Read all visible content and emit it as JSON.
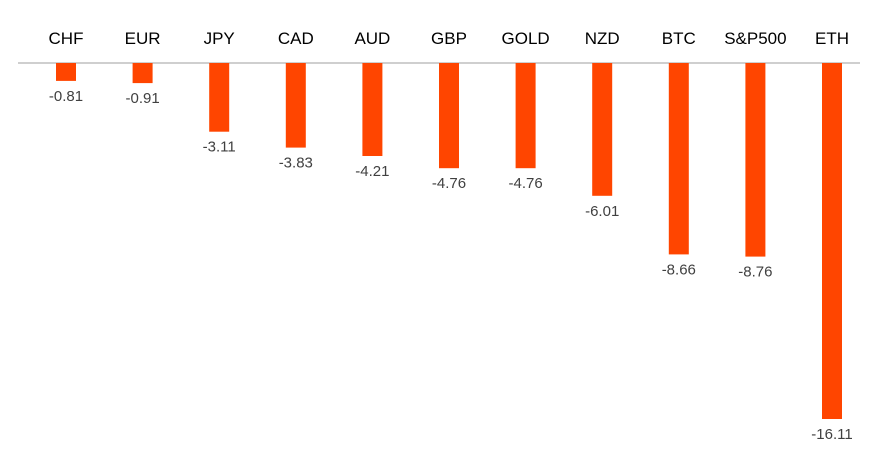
{
  "chart_data": {
    "type": "bar",
    "categories": [
      "CHF",
      "EUR",
      "JPY",
      "CAD",
      "AUD",
      "GBP",
      "GOLD",
      "NZD",
      "BTC",
      "S&P500",
      "ETH"
    ],
    "values": [
      -0.81,
      -0.91,
      -3.11,
      -3.83,
      -4.21,
      -4.76,
      -4.76,
      -6.01,
      -8.66,
      -8.76,
      -16.11
    ],
    "data_labels": [
      "-0.81",
      "-0.91",
      "-3.11",
      "-3.83",
      "-4.21",
      "-4.76",
      "-4.76",
      "-6.01",
      "-8.66",
      "-8.76",
      "-16.11"
    ],
    "title": "",
    "xlabel": "",
    "ylabel": "",
    "ylim": [
      -16.11,
      0
    ],
    "category_axis_position": "top",
    "grid": false,
    "legend": "none",
    "bar_color": "#FF4500",
    "axis_color": "#BFBFBF"
  }
}
